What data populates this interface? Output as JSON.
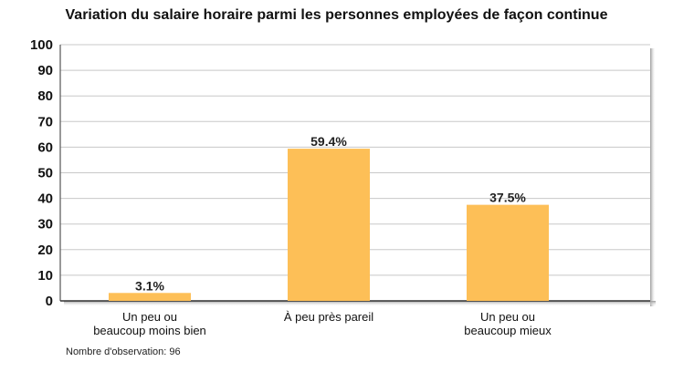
{
  "chart_data": {
    "type": "bar",
    "title": "Variation du salaire horaire parmi les personnes employées de façon continue",
    "categories": [
      [
        "Un peu ou",
        "beaucoup moins bien"
      ],
      [
        "À peu près pareil"
      ],
      [
        "Un peu ou",
        "beaucoup mieux"
      ]
    ],
    "values": [
      3.1,
      59.4,
      37.5
    ],
    "data_labels": [
      "3.1%",
      "59.4%",
      "37.5%"
    ],
    "ylim": [
      0,
      100
    ],
    "yticks": [
      "0",
      "10",
      "20",
      "30",
      "40",
      "50",
      "60",
      "70",
      "80",
      "90",
      "100"
    ],
    "grid": true,
    "bar_color": "#FDBF57",
    "note": "Nombre d'observation: 96"
  }
}
